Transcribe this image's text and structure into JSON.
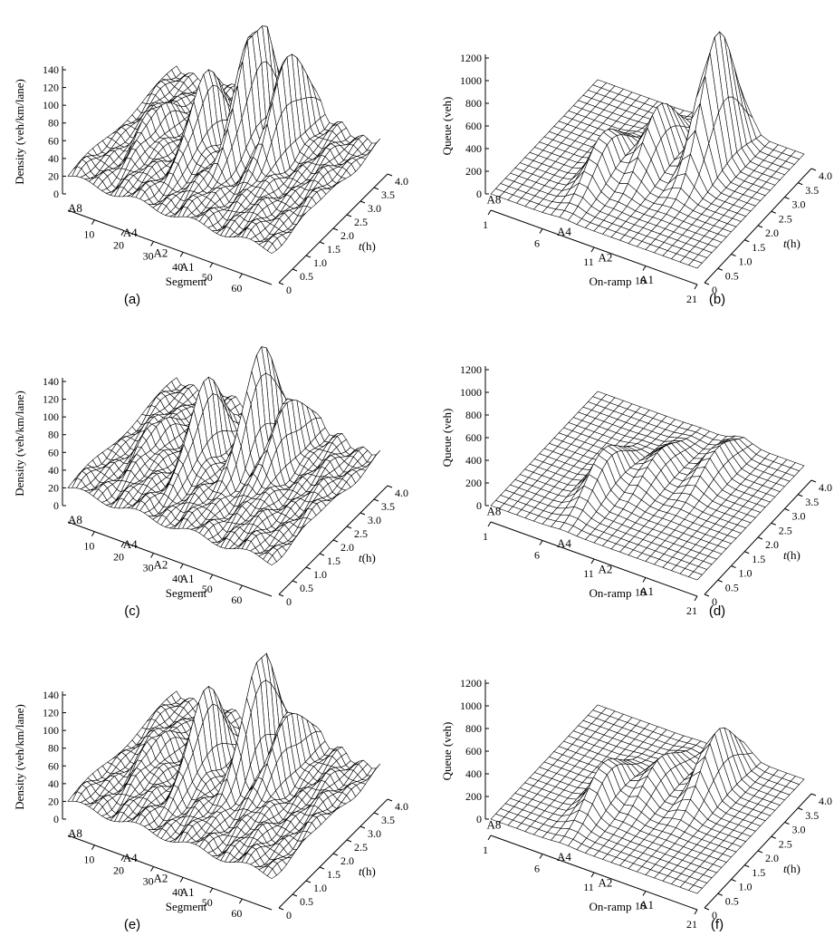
{
  "chart_data": [
    {
      "panel": "(a)",
      "type": "surface",
      "kind": "density",
      "zlabel": "Density (veh/km/lane)",
      "xlabel": "Segment",
      "ylabel_prefix": "t",
      "ylabel_suffix": "(h)",
      "z_ticks": [
        "0",
        "20",
        "40",
        "60",
        "80",
        "100",
        "120",
        "140"
      ],
      "x_ticks": [
        "10",
        "20",
        "30",
        "40",
        "50",
        "60"
      ],
      "t_ticks": [
        "0",
        "0.5",
        "1.0",
        "1.5",
        "2.0",
        "2.5",
        "3.0",
        "3.5",
        "4.0"
      ],
      "ramp_labels": [
        "A8",
        "A4",
        "A2",
        "A1"
      ],
      "zlim": [
        0,
        140
      ],
      "xlim": [
        1,
        70
      ],
      "tlim": [
        0,
        4.0
      ],
      "base_value": 20,
      "peaks": [
        {
          "label": "A8",
          "x": 12,
          "t": 2.0,
          "value": 45
        },
        {
          "label": "A4",
          "x": 27,
          "t": 2.2,
          "value": 95
        },
        {
          "label": "A2",
          "x": 38,
          "t": 2.8,
          "value": 165
        },
        {
          "label": "A1",
          "x": 48,
          "t": 3.0,
          "value": 130
        }
      ]
    },
    {
      "panel": "(b)",
      "type": "surface",
      "kind": "queue",
      "zlabel": "Queue (veh)",
      "xlabel": "On-ramp",
      "ylabel_prefix": "t",
      "ylabel_suffix": "(h)",
      "z_ticks": [
        "0",
        "200",
        "400",
        "600",
        "800",
        "1000",
        "1200"
      ],
      "x_ticks": [
        "1",
        "6",
        "11",
        "16",
        "21"
      ],
      "t_ticks": [
        "0",
        "0.5",
        "1.0",
        "1.5",
        "2.0",
        "2.5",
        "3.0",
        "3.5",
        "4.0"
      ],
      "ramp_labels": [
        "A8",
        "A4",
        "A2",
        "A1"
      ],
      "zlim": [
        0,
        1200
      ],
      "xlim": [
        1,
        21
      ],
      "tlim": [
        0,
        4.0
      ],
      "base_value": 0,
      "peaks": [
        {
          "label": "A4",
          "x": 8,
          "t": 1.6,
          "value": 380
        },
        {
          "label": "A2",
          "x": 11,
          "t": 2.4,
          "value": 500
        },
        {
          "label": "A1",
          "x": 15,
          "t": 3.0,
          "value": 1150
        }
      ]
    },
    {
      "panel": "(c)",
      "type": "surface",
      "kind": "density",
      "zlabel": "Density (veh/km/lane)",
      "xlabel": "Segment",
      "ylabel_prefix": "t",
      "ylabel_suffix": "(h)",
      "z_ticks": [
        "0",
        "20",
        "40",
        "60",
        "80",
        "100",
        "120",
        "140"
      ],
      "x_ticks": [
        "10",
        "20",
        "30",
        "40",
        "50",
        "60"
      ],
      "t_ticks": [
        "0",
        "0.5",
        "1.0",
        "1.5",
        "2.0",
        "2.5",
        "3.0",
        "3.5",
        "4.0"
      ],
      "ramp_labels": [
        "A8",
        "A4",
        "A2",
        "A1"
      ],
      "zlim": [
        0,
        140
      ],
      "xlim": [
        1,
        70
      ],
      "tlim": [
        0,
        4.0
      ],
      "base_value": 20,
      "peaks": [
        {
          "label": "A8",
          "x": 12,
          "t": 2.0,
          "value": 40
        },
        {
          "label": "A4",
          "x": 27,
          "t": 2.2,
          "value": 100
        },
        {
          "label": "A2",
          "x": 40,
          "t": 2.8,
          "value": 135
        },
        {
          "label": "A1",
          "x": 48,
          "t": 3.0,
          "value": 90
        }
      ]
    },
    {
      "panel": "(d)",
      "type": "surface",
      "kind": "queue",
      "zlabel": "Queue (veh)",
      "xlabel": "On-ramp",
      "ylabel_prefix": "t",
      "ylabel_suffix": "(h)",
      "z_ticks": [
        "0",
        "200",
        "400",
        "600",
        "800",
        "1000",
        "1200"
      ],
      "x_ticks": [
        "1",
        "6",
        "11",
        "16",
        "21"
      ],
      "t_ticks": [
        "0",
        "0.5",
        "1.0",
        "1.5",
        "2.0",
        "2.5",
        "3.0",
        "3.5",
        "4.0"
      ],
      "ramp_labels": [
        "A8",
        "A4",
        "A2",
        "A1"
      ],
      "zlim": [
        0,
        1200
      ],
      "xlim": [
        1,
        21
      ],
      "tlim": [
        0,
        4.0
      ],
      "base_value": 0,
      "peaks": [
        {
          "label": "A4",
          "x": 8,
          "t": 1.6,
          "value": 330
        },
        {
          "label": "A2",
          "x": 11,
          "t": 2.4,
          "value": 200
        },
        {
          "label": "A1",
          "x": 15,
          "t": 3.0,
          "value": 220
        }
      ]
    },
    {
      "panel": "(e)",
      "type": "surface",
      "kind": "density",
      "zlabel": "Density (veh/km/lane)",
      "xlabel": "Segment",
      "ylabel_prefix": "t",
      "ylabel_suffix": "(h)",
      "z_ticks": [
        "0",
        "20",
        "40",
        "60",
        "80",
        "100",
        "120",
        "140"
      ],
      "x_ticks": [
        "10",
        "20",
        "30",
        "40",
        "50",
        "60"
      ],
      "t_ticks": [
        "0",
        "0.5",
        "1.0",
        "1.5",
        "2.0",
        "2.5",
        "3.0",
        "3.5",
        "4.0"
      ],
      "ramp_labels": [
        "A8",
        "A4",
        "A2",
        "A1"
      ],
      "zlim": [
        0,
        140
      ],
      "xlim": [
        1,
        70
      ],
      "tlim": [
        0,
        4.0
      ],
      "base_value": 20,
      "peaks": [
        {
          "label": "A8",
          "x": 12,
          "t": 2.0,
          "value": 40
        },
        {
          "label": "A4",
          "x": 27,
          "t": 2.2,
          "value": 105
        },
        {
          "label": "A2",
          "x": 40,
          "t": 2.8,
          "value": 145
        },
        {
          "label": "A1",
          "x": 48,
          "t": 3.0,
          "value": 90
        }
      ]
    },
    {
      "panel": "(f)",
      "type": "surface",
      "kind": "queue",
      "zlabel": "Queue (veh)",
      "xlabel": "On-ramp",
      "ylabel_prefix": "t",
      "ylabel_suffix": "(h)",
      "z_ticks": [
        "0",
        "200",
        "400",
        "600",
        "800",
        "1000",
        "1200"
      ],
      "x_ticks": [
        "1",
        "6",
        "11",
        "16",
        "21"
      ],
      "t_ticks": [
        "0",
        "0.5",
        "1.0",
        "1.5",
        "2.0",
        "2.5",
        "3.0",
        "3.5",
        "4.0"
      ],
      "ramp_labels": [
        "A8",
        "A4",
        "A2",
        "A1"
      ],
      "zlim": [
        0,
        1200
      ],
      "xlim": [
        1,
        21
      ],
      "tlim": [
        0,
        4.0
      ],
      "base_value": 0,
      "peaks": [
        {
          "label": "A4",
          "x": 8,
          "t": 1.6,
          "value": 330
        },
        {
          "label": "A2",
          "x": 11,
          "t": 2.4,
          "value": 250
        },
        {
          "label": "A1",
          "x": 15,
          "t": 3.0,
          "value": 500
        }
      ]
    }
  ]
}
